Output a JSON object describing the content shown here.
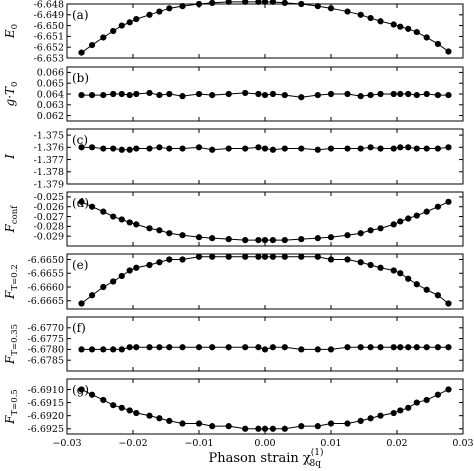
{
  "chart_data": {
    "type": "line",
    "xlabel": "Phason strain χ",
    "xlabel_sub": "8q",
    "xlabel_sup": "(1)",
    "xlim": [
      -0.03,
      0.03
    ],
    "xticks": [
      -0.03,
      -0.02,
      -0.01,
      0.0,
      0.01,
      0.02,
      0.03
    ],
    "xtick_labels": [
      "−0.03",
      "−0.02",
      "−0.01",
      "0.00",
      "0.01",
      "0.02",
      "0.03"
    ],
    "x": [
      -0.0278,
      -0.0262,
      -0.0245,
      -0.023,
      -0.0217,
      -0.0205,
      -0.0195,
      -0.0175,
      -0.016,
      -0.0145,
      -0.0125,
      -0.01,
      -0.008,
      -0.0055,
      -0.003,
      -0.001,
      0.0,
      0.0012,
      0.003,
      0.0055,
      0.008,
      0.01,
      0.0125,
      0.0145,
      0.016,
      0.0175,
      0.0195,
      0.0205,
      0.0217,
      0.023,
      0.0245,
      0.0262,
      0.0278
    ],
    "grid": false,
    "marker": "circle",
    "color": "#000000",
    "panels": [
      {
        "letter": "(a)",
        "ylabel": "E",
        "ylabel_sub": "0",
        "ylim": [
          -6.653,
          -6.648
        ],
        "yticks": [
          "-6.648",
          "-6.649",
          "-6.650",
          "-6.651",
          "-6.652",
          "-6.653"
        ],
        "ytick_values": [
          -6.648,
          -6.649,
          -6.65,
          -6.651,
          -6.652,
          -6.653
        ],
        "values": [
          -6.6525,
          -6.6518,
          -6.6511,
          -6.6505,
          -6.65,
          -6.6497,
          -6.6494,
          -6.649,
          -6.6487,
          -6.6484,
          -6.6482,
          -6.648,
          -6.6479,
          -6.6478,
          -6.6478,
          -6.6478,
          -6.6478,
          -6.6478,
          -6.6479,
          -6.648,
          -6.6482,
          -6.6484,
          -6.6487,
          -6.649,
          -6.6493,
          -6.6496,
          -6.6499,
          -6.6501,
          -6.6503,
          -6.6506,
          -6.6511,
          -6.6517,
          -6.6524
        ]
      },
      {
        "letter": "(b)",
        "ylabel": "g·T",
        "ylabel_sub": "0",
        "ylim": [
          0.0615,
          0.0665
        ],
        "yticks": [
          "0.066",
          "0.065",
          "0.064",
          "0.063",
          "0.062"
        ],
        "ytick_values": [
          0.066,
          0.065,
          0.064,
          0.063,
          0.062
        ],
        "values": [
          0.0639,
          0.0639,
          0.0639,
          0.064,
          0.064,
          0.0639,
          0.064,
          0.0641,
          0.0639,
          0.064,
          0.0638,
          0.064,
          0.0639,
          0.064,
          0.0641,
          0.064,
          0.0639,
          0.064,
          0.0639,
          0.0637,
          0.0639,
          0.064,
          0.064,
          0.0638,
          0.0639,
          0.064,
          0.064,
          0.064,
          0.064,
          0.0639,
          0.064,
          0.0639,
          0.0639
        ]
      },
      {
        "letter": "(c)",
        "ylabel": "I",
        "ylabel_sub": "",
        "ylim": [
          -1.379,
          -1.3745
        ],
        "yticks": [
          "-1.375",
          "-1.376",
          "-1.377",
          "-1.378",
          "-1.379"
        ],
        "ytick_values": [
          -1.375,
          -1.376,
          -1.377,
          -1.378,
          -1.379
        ],
        "values": [
          -1.376,
          -1.376,
          -1.3761,
          -1.3761,
          -1.3762,
          -1.3762,
          -1.3761,
          -1.3761,
          -1.376,
          -1.3761,
          -1.3761,
          -1.376,
          -1.3762,
          -1.3761,
          -1.3761,
          -1.376,
          -1.3761,
          -1.3762,
          -1.3761,
          -1.3761,
          -1.3762,
          -1.3761,
          -1.3761,
          -1.3761,
          -1.376,
          -1.3761,
          -1.3761,
          -1.376,
          -1.376,
          -1.3761,
          -1.3761,
          -1.3761,
          -1.376
        ]
      },
      {
        "letter": "(d)",
        "ylabel": "F",
        "ylabel_sub": "conf",
        "ylim": [
          -0.03,
          -0.0245
        ],
        "yticks": [
          "-0.025",
          "-0.026",
          "-0.027",
          "-0.028",
          "-0.029"
        ],
        "ytick_values": [
          -0.025,
          -0.026,
          -0.027,
          -0.028,
          -0.029
        ],
        "values": [
          -0.0255,
          -0.026,
          -0.0265,
          -0.027,
          -0.0273,
          -0.0276,
          -0.0278,
          -0.0282,
          -0.0284,
          -0.0287,
          -0.0289,
          -0.0291,
          -0.0292,
          -0.0293,
          -0.0294,
          -0.0294,
          -0.0294,
          -0.0294,
          -0.0294,
          -0.0293,
          -0.0292,
          -0.0291,
          -0.0289,
          -0.0287,
          -0.0284,
          -0.0282,
          -0.0278,
          -0.0275,
          -0.0272,
          -0.0269,
          -0.0265,
          -0.026,
          -0.0255
        ]
      },
      {
        "letter": "(e)",
        "ylabel": "F",
        "ylabel_sub": "T=0.2",
        "ylim": [
          -6.6668,
          -6.6648
        ],
        "yticks": [
          "-6.6650",
          "-6.6655",
          "-6.6660",
          "-6.6665"
        ],
        "ytick_values": [
          -6.665,
          -6.6655,
          -6.666,
          -6.6665
        ],
        "values": [
          -6.6666,
          -6.6663,
          -6.666,
          -6.6658,
          -6.6656,
          -6.6654,
          -6.6653,
          -6.6652,
          -6.6651,
          -6.665,
          -6.665,
          -6.6649,
          -6.6649,
          -6.6649,
          -6.6649,
          -6.6649,
          -6.6649,
          -6.6649,
          -6.6649,
          -6.6649,
          -6.6649,
          -6.665,
          -6.665,
          -6.6651,
          -6.6652,
          -6.6653,
          -6.6654,
          -6.6655,
          -6.6657,
          -6.6659,
          -6.6661,
          -6.6663,
          -6.6666
        ]
      },
      {
        "letter": "(f)",
        "ylabel": "F",
        "ylabel_sub": "T=0.35",
        "ylim": [
          -6.679,
          -6.6765
        ],
        "yticks": [
          "-6.6770",
          "-6.6775",
          "-6.6780",
          "-6.6785"
        ],
        "ytick_values": [
          -6.677,
          -6.6775,
          -6.678,
          -6.6785
        ],
        "values": [
          -6.678,
          -6.678,
          -6.678,
          -6.678,
          -6.678,
          -6.6779,
          -6.6779,
          -6.6779,
          -6.6779,
          -6.6779,
          -6.6779,
          -6.6779,
          -6.6779,
          -6.6779,
          -6.6779,
          -6.6779,
          -6.678,
          -6.6779,
          -6.6779,
          -6.678,
          -6.678,
          -6.678,
          -6.6779,
          -6.6779,
          -6.6779,
          -6.6779,
          -6.6779,
          -6.6779,
          -6.6779,
          -6.6779,
          -6.6779,
          -6.6779,
          -6.6779
        ]
      },
      {
        "letter": "(g)",
        "ylabel": "F",
        "ylabel_sub": "T=0.5",
        "ylim": [
          -6.6927,
          -6.6906
        ],
        "yticks": [
          "-6.6910",
          "-6.6915",
          "-6.6920",
          "-6.6925"
        ],
        "ytick_values": [
          -6.691,
          -6.6915,
          -6.692,
          -6.6925
        ],
        "values": [
          -6.691,
          -6.6912,
          -6.6914,
          -6.6916,
          -6.6917,
          -6.6918,
          -6.6919,
          -6.692,
          -6.6921,
          -6.6922,
          -6.6923,
          -6.6923,
          -6.6924,
          -6.6924,
          -6.6925,
          -6.6925,
          -6.6925,
          -6.6925,
          -6.6925,
          -6.6924,
          -6.6924,
          -6.6923,
          -6.6923,
          -6.6922,
          -6.6921,
          -6.692,
          -6.6919,
          -6.6918,
          -6.6917,
          -6.6915,
          -6.6914,
          -6.6912,
          -6.691
        ]
      }
    ]
  }
}
